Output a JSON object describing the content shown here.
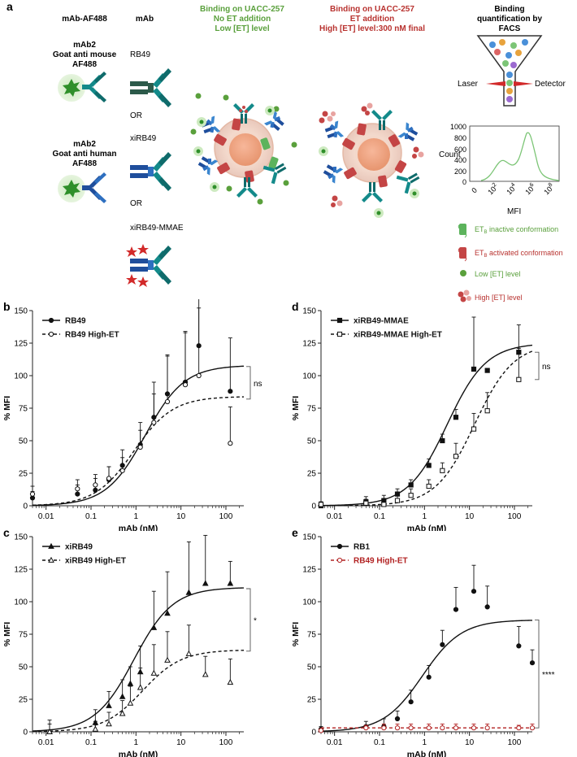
{
  "panel_a": {
    "letter": "a",
    "col_headers": {
      "c1": "mAb-AF488",
      "c2": "mAb",
      "c3": [
        "Binding on UACC-257",
        "No ET addition",
        "Low [ET] level"
      ],
      "c4": [
        "Binding on UACC-257",
        "ET addition",
        "High [ET] level:300 nM final"
      ],
      "c5": [
        "Binding",
        "quantification by",
        "FACS"
      ]
    },
    "secondary_1": [
      "mAb2",
      "Goat anti mouse",
      "AF488"
    ],
    "secondary_2": [
      "mAb2",
      "Goat anti human",
      "AF488"
    ],
    "antibodies": [
      "RB49",
      "OR",
      "xiRB49",
      "OR",
      "xiRB49-MMAE"
    ],
    "facs": {
      "laser": "Laser",
      "detector": "Detector",
      "ylabel": "Count",
      "xlabel": "MFI",
      "yticks": [
        "1000",
        "800",
        "600",
        "400",
        "200",
        "0"
      ],
      "xticks": [
        "0",
        "10",
        "10",
        "10",
        "10"
      ],
      "xtick_exponents": [
        "",
        "2",
        "4",
        "6",
        "8"
      ]
    },
    "legend": {
      "inactive_pre": "ET",
      "inactive_sub": "B",
      "inactive_post": " inactive conformation",
      "active_pre": "ET",
      "active_sub": "B",
      "active_post": " activated conformation",
      "low": "Low [ET] level",
      "high": "High [ET] level"
    }
  },
  "colors": {
    "green": "#5aa03c",
    "red": "#b8322f",
    "lightgreen": "#7cc576",
    "oxblood": "#b22222"
  },
  "chart_data": [
    {
      "id": "b",
      "letter": "b",
      "type": "scatter",
      "xlabel": "mAb (nM)",
      "ylabel": "% MFI",
      "xlim": [
        0.005,
        250
      ],
      "ylim": [
        0,
        150
      ],
      "xticks": [
        "0.01",
        "0.1",
        "1",
        "10",
        "100"
      ],
      "yticks": [
        "0",
        "25",
        "50",
        "75",
        "100",
        "125",
        "150"
      ],
      "legend_position": "top-left",
      "bracket": {
        "y1": 107,
        "y2": 82,
        "label": "ns"
      },
      "series": [
        {
          "name": "RB49",
          "marker": "filled-circle",
          "line": "solid",
          "color": "#111111",
          "x": [
            0.005,
            0.05,
            0.125,
            0.25,
            0.5,
            1.25,
            2.5,
            5,
            12.5,
            25,
            125
          ],
          "y": [
            6,
            9,
            12,
            20,
            31,
            47,
            68,
            86,
            95,
            123,
            88
          ],
          "err": [
            5,
            7,
            9,
            10,
            12,
            17,
            27,
            30,
            38,
            43,
            41
          ],
          "fit": {
            "bottom": 0,
            "top": 108,
            "ec50": 1.6,
            "hill": 1.0
          }
        },
        {
          "name": "RB49 High-ET",
          "marker": "open-circle",
          "line": "dashed",
          "color": "#111111",
          "x": [
            0.005,
            0.05,
            0.125,
            0.25,
            0.5,
            1.25,
            2.5,
            5,
            12.5,
            25,
            125
          ],
          "y": [
            9,
            13,
            16,
            21,
            27,
            45,
            64,
            80,
            93,
            100,
            48
          ],
          "err": [
            6,
            7,
            8,
            9,
            10,
            13,
            22,
            35,
            41,
            52,
            28
          ],
          "fit": {
            "bottom": 0,
            "top": 84,
            "ec50": 0.9,
            "hill": 1.0
          }
        }
      ]
    },
    {
      "id": "d",
      "letter": "d",
      "type": "scatter",
      "xlabel": "mAb (nM)",
      "ylabel": "% MFI",
      "xlim": [
        0.005,
        250
      ],
      "ylim": [
        0,
        150
      ],
      "xticks": [
        "0.01",
        "0.1",
        "1",
        "10",
        "100"
      ],
      "yticks": [
        "0",
        "25",
        "50",
        "75",
        "100",
        "125",
        "150"
      ],
      "legend_position": "top-left",
      "bracket": {
        "y1": 118,
        "y2": 97,
        "label": "ns"
      },
      "series": [
        {
          "name": "xiRB49-MMAE",
          "marker": "filled-square",
          "line": "solid",
          "color": "#111111",
          "x": [
            0.005,
            0.05,
            0.125,
            0.25,
            0.5,
            1.25,
            2.5,
            5,
            12.5,
            25,
            125
          ],
          "y": [
            0,
            3,
            4,
            9,
            16,
            31,
            50,
            68,
            105,
            104,
            118
          ],
          "err": [
            3,
            4,
            4,
            4,
            4,
            5,
            5,
            6,
            40,
            0,
            21
          ],
          "fit": {
            "bottom": 0,
            "top": 125,
            "ec50": 3.2,
            "hill": 1.0
          }
        },
        {
          "name": "xiRB49-MMAE High-ET",
          "marker": "open-square",
          "line": "dashed",
          "color": "#111111",
          "x": [
            0.005,
            0.05,
            0.125,
            0.25,
            0.5,
            1.25,
            2.5,
            5,
            12.5,
            25,
            125
          ],
          "y": [
            1,
            2,
            1,
            4,
            8,
            15,
            27,
            38,
            59,
            73,
            97
          ],
          "err": [
            2,
            3,
            3,
            4,
            5,
            5,
            6,
            10,
            12,
            14,
            24
          ],
          "fit": {
            "bottom": 0,
            "top": 125,
            "ec50": 13,
            "hill": 1.0
          }
        }
      ]
    },
    {
      "id": "c",
      "letter": "c",
      "type": "scatter",
      "xlabel": "mAb (nM)",
      "ylabel": "% MFI",
      "xlim": [
        0.005,
        250
      ],
      "ylim": [
        0,
        150
      ],
      "xticks": [
        "0.01",
        "0.1",
        "1",
        "10",
        "100"
      ],
      "yticks": [
        "0",
        "25",
        "50",
        "75",
        "100",
        "125",
        "150"
      ],
      "legend_position": "top-left",
      "bracket": {
        "y1": 110,
        "y2": 62,
        "label": "*"
      },
      "series": [
        {
          "name": "xiRB49",
          "marker": "filled-triangle",
          "line": "solid",
          "color": "#111111",
          "x": [
            0.012,
            0.125,
            0.25,
            0.5,
            0.75,
            1.25,
            2.5,
            5,
            15,
            35,
            125
          ],
          "y": [
            0,
            7,
            20,
            27,
            37,
            46,
            80,
            91,
            107,
            114,
            114
          ],
          "err": [
            9,
            10,
            11,
            13,
            13,
            20,
            28,
            32,
            39,
            37,
            17
          ],
          "fit": {
            "bottom": 0,
            "top": 111,
            "ec50": 0.9,
            "hill": 1.0
          }
        },
        {
          "name": "xiRB49 High-ET",
          "marker": "open-triangle",
          "line": "dashed",
          "color": "#111111",
          "x": [
            0.012,
            0.125,
            0.25,
            0.5,
            0.75,
            1.25,
            2.5,
            5,
            15,
            35,
            125
          ],
          "y": [
            0,
            2,
            6,
            14,
            22,
            34,
            45,
            55,
            60,
            44,
            38
          ],
          "err": [
            6,
            6,
            9,
            10,
            13,
            15,
            22,
            22,
            22,
            14,
            18
          ],
          "fit": {
            "bottom": 0,
            "top": 63,
            "ec50": 1.4,
            "hill": 1.0
          }
        }
      ]
    },
    {
      "id": "e",
      "letter": "e",
      "type": "scatter",
      "xlabel": "mAb (nM)",
      "ylabel": "% MFI",
      "xlim": [
        0.005,
        250
      ],
      "ylim": [
        0,
        150
      ],
      "xticks": [
        "0.01",
        "0.1",
        "1",
        "10",
        "100"
      ],
      "yticks": [
        "0",
        "25",
        "50",
        "75",
        "100",
        "125",
        "150"
      ],
      "legend_position": "top-left",
      "bracket": {
        "y1": 86,
        "y2": 3,
        "label": "****"
      },
      "series": [
        {
          "name": "RB1",
          "marker": "filled-circle",
          "line": "solid",
          "color": "#111111",
          "x": [
            0.005,
            0.05,
            0.125,
            0.25,
            0.5,
            1.25,
            2.5,
            5,
            12.5,
            25,
            125,
            250
          ],
          "y": [
            2,
            4,
            4,
            10,
            23,
            42,
            67,
            94,
            108,
            96,
            66,
            53
          ],
          "err": [
            2,
            4,
            6,
            6,
            9,
            9,
            11,
            17,
            20,
            16,
            15,
            10
          ],
          "fit": {
            "bottom": 0,
            "top": 86,
            "ec50": 0.9,
            "hill": 1.0
          }
        },
        {
          "name": "RB49 High-ET",
          "marker": "open-circle",
          "line": "dashed",
          "color": "#b22222",
          "x": [
            0.005,
            0.05,
            0.125,
            0.25,
            0.5,
            1.25,
            2.5,
            5,
            12.5,
            25,
            125,
            250
          ],
          "y": [
            1,
            3,
            3,
            3,
            3,
            3,
            3,
            3,
            3,
            3,
            3,
            3
          ],
          "err": [
            1,
            2,
            3,
            3,
            3,
            3,
            3,
            3,
            3,
            3,
            2,
            3
          ],
          "fit": {
            "bottom": 3,
            "top": 3,
            "ec50": 1,
            "hill": 1.0
          }
        }
      ]
    }
  ]
}
